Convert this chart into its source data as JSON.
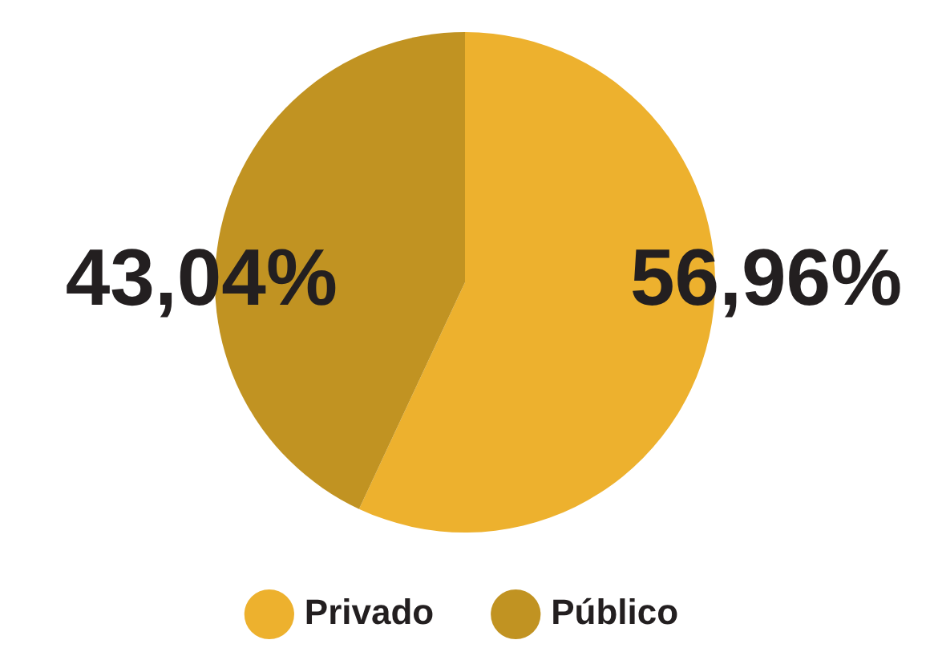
{
  "chart_data": {
    "type": "pie",
    "categories": [
      "Privado",
      "Público"
    ],
    "values": [
      56.96,
      43.04
    ],
    "colors": [
      "#edb12e",
      "#c19322"
    ],
    "value_labels": [
      "56,96%",
      "43,04%"
    ],
    "legend": "bottom"
  }
}
